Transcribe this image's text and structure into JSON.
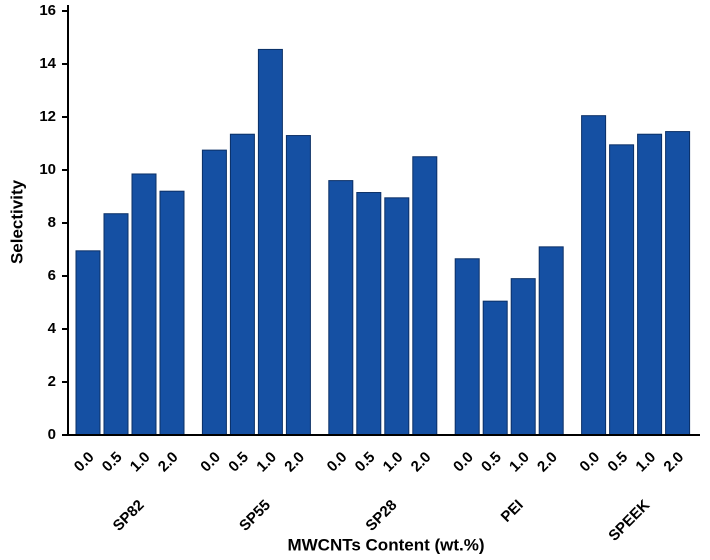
{
  "chart_data": {
    "type": "bar",
    "y_label": "Selectivity",
    "x_label": "MWCNTs Content (wt.%)",
    "categories": [
      "SP82",
      "SP55",
      "SP28",
      "PEI",
      "SPEEK"
    ],
    "series": [
      {
        "name": "0.0",
        "color": "#1550a3",
        "values": [
          6.95,
          10.75,
          9.6,
          6.65,
          12.05
        ]
      },
      {
        "name": "0.5",
        "color": "#1550a3",
        "values": [
          8.35,
          11.35,
          9.15,
          5.05,
          10.95
        ]
      },
      {
        "name": "1.0",
        "color": "#1550a3",
        "values": [
          9.85,
          14.55,
          8.95,
          5.9,
          11.35
        ]
      },
      {
        "name": "2.0",
        "color": "#1550a3",
        "values": [
          9.2,
          11.3,
          10.5,
          7.1,
          11.45
        ]
      }
    ],
    "ylim": [
      0,
      16
    ],
    "yticks": [
      0,
      2,
      4,
      6,
      8,
      10,
      12,
      14,
      16
    ],
    "grid": false,
    "legend": false
  }
}
